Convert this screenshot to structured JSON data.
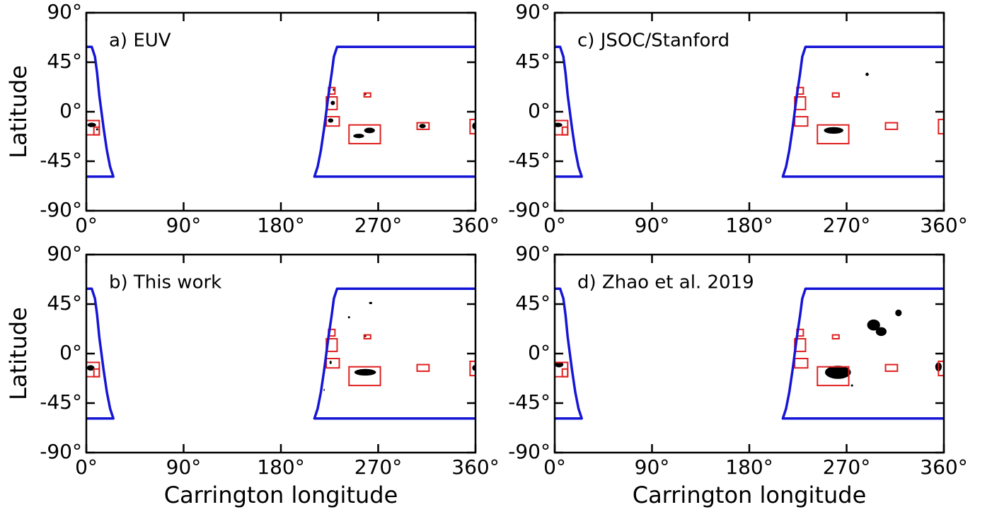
{
  "chart_data": [
    {
      "type": "map",
      "label": "a) EUV",
      "ylabel": "Latitude",
      "xlim": [
        0,
        360
      ],
      "ylim": [
        -90,
        90
      ],
      "xticks": [
        {
          "value": 0,
          "label": "0°"
        },
        {
          "value": 90,
          "label": "90°"
        },
        {
          "value": 180,
          "label": "180°"
        },
        {
          "value": 270,
          "label": "270°"
        },
        {
          "value": 360,
          "label": "360°"
        }
      ],
      "yticks": [
        {
          "value": -90,
          "label": "-90°"
        },
        {
          "value": -45,
          "label": "-45°"
        },
        {
          "value": 0,
          "label": "0°"
        },
        {
          "value": 45,
          "label": "45°"
        },
        {
          "value": 90,
          "label": "90°"
        }
      ],
      "boundary": {
        "color": "#1515d6",
        "lon": [
          0,
          5,
          8,
          10,
          12,
          14,
          16,
          19,
          22,
          25,
          0,
          null,
          360,
          232,
          229,
          227,
          224,
          222,
          220,
          217,
          214,
          211,
          360
        ],
        "lat": [
          59,
          59,
          50,
          35,
          15,
          0,
          -15,
          -35,
          -50,
          -59,
          -59,
          null,
          59,
          59,
          50,
          35,
          15,
          0,
          -15,
          -35,
          -50,
          -59,
          -59
        ]
      },
      "boxes": {
        "color": "#e02020",
        "lon0": [
          0,
          7,
          222,
          224,
          222,
          243,
          257,
          306,
          355
        ],
        "lon1": [
          12,
          12,
          232,
          230,
          234,
          272,
          263,
          317,
          360
        ],
        "lat0": [
          -21,
          -21,
          2,
          16,
          -13,
          -29,
          13.5,
          -16,
          -20
        ],
        "lat1": [
          -8,
          -14,
          13.5,
          22,
          -4.5,
          -12,
          17,
          -10,
          -7
        ]
      },
      "regions": {
        "color": "#000000",
        "lon": [
          5,
          10,
          229,
          228,
          226,
          252,
          262,
          258,
          311,
          359
        ],
        "lat": [
          -12,
          -16,
          20,
          8,
          -8,
          -22,
          -17,
          16,
          -13,
          -13
        ],
        "dlon": [
          8,
          2,
          2,
          4,
          5,
          10,
          10,
          2,
          6,
          4
        ],
        "dlat": [
          4,
          2,
          2,
          4,
          4,
          4,
          5,
          2,
          4,
          6
        ]
      }
    },
    {
      "type": "map",
      "label": "c) JSOC/Stanford",
      "xlim": [
        0,
        360
      ],
      "ylim": [
        -90,
        90
      ],
      "xticks": [
        {
          "value": 0,
          "label": "0°"
        },
        {
          "value": 90,
          "label": "90°"
        },
        {
          "value": 180,
          "label": "180°"
        },
        {
          "value": 270,
          "label": "270°"
        },
        {
          "value": 360,
          "label": "360°"
        }
      ],
      "yticks": [
        {
          "value": -90,
          "label": "-90°"
        },
        {
          "value": -45,
          "label": "-45°"
        },
        {
          "value": 0,
          "label": "0°"
        },
        {
          "value": 45,
          "label": "45°"
        },
        {
          "value": 90,
          "label": "90°"
        }
      ],
      "boundary": {
        "color": "#1515d6",
        "lon": [
          0,
          5,
          8,
          10,
          12,
          14,
          16,
          19,
          22,
          25,
          0,
          null,
          360,
          232,
          229,
          227,
          224,
          222,
          220,
          217,
          214,
          211,
          360
        ],
        "lat": [
          59,
          59,
          50,
          35,
          15,
          0,
          -15,
          -35,
          -50,
          -59,
          -59,
          null,
          59,
          59,
          50,
          35,
          15,
          0,
          -15,
          -35,
          -50,
          -59,
          -59
        ]
      },
      "boxes": {
        "color": "#e02020",
        "lon0": [
          0,
          7,
          222,
          224,
          222,
          243,
          257,
          306,
          355
        ],
        "lon1": [
          12,
          12,
          232,
          230,
          234,
          272,
          263,
          317,
          360
        ],
        "lat0": [
          -21,
          -21,
          2,
          16,
          -13,
          -29,
          13.5,
          -16,
          -20
        ],
        "lat1": [
          -8,
          -14,
          13.5,
          22,
          -4.5,
          -12,
          17,
          -10,
          -7
        ]
      },
      "regions": {
        "color": "#000000",
        "lon": [
          3,
          289,
          258
        ],
        "lat": [
          -12,
          34,
          -17
        ],
        "dlon": [
          8,
          3,
          18
        ],
        "dlat": [
          4,
          3,
          6
        ]
      }
    },
    {
      "type": "map",
      "label": "b) This work",
      "ylabel": "Latitude",
      "xlabel": "Carrington longitude",
      "xlim": [
        0,
        360
      ],
      "ylim": [
        -90,
        90
      ],
      "xticks": [
        {
          "value": 0,
          "label": "0°"
        },
        {
          "value": 90,
          "label": "90°"
        },
        {
          "value": 180,
          "label": "180°"
        },
        {
          "value": 270,
          "label": "270°"
        },
        {
          "value": 360,
          "label": "360°"
        }
      ],
      "yticks": [
        {
          "value": -90,
          "label": "-90°"
        },
        {
          "value": -45,
          "label": "-45°"
        },
        {
          "value": 0,
          "label": "0°"
        },
        {
          "value": 45,
          "label": "45°"
        },
        {
          "value": 90,
          "label": "90°"
        }
      ],
      "boundary": {
        "color": "#1515d6",
        "lon": [
          0,
          5,
          8,
          10,
          12,
          14,
          16,
          19,
          22,
          25,
          0,
          null,
          360,
          232,
          229,
          227,
          224,
          222,
          220,
          217,
          214,
          211,
          360
        ],
        "lat": [
          59,
          59,
          50,
          35,
          15,
          0,
          -15,
          -35,
          -50,
          -59,
          -59,
          null,
          59,
          59,
          50,
          35,
          15,
          0,
          -15,
          -35,
          -50,
          -59,
          -59
        ]
      },
      "boxes": {
        "color": "#e02020",
        "lon0": [
          0,
          7,
          222,
          224,
          222,
          243,
          257,
          306,
          355
        ],
        "lon1": [
          12,
          12,
          232,
          230,
          234,
          272,
          263,
          317,
          360
        ],
        "lat0": [
          -21,
          -21,
          2,
          16,
          -13,
          -29,
          13.5,
          -16,
          -20
        ],
        "lat1": [
          -8,
          -14,
          13.5,
          22,
          -4.5,
          -12,
          17,
          -10,
          -7
        ]
      },
      "regions": {
        "color": "#000000",
        "lon": [
          4,
          226,
          243,
          263,
          220,
          258,
          359,
          258
        ],
        "lat": [
          -13,
          -8,
          33,
          46,
          -33,
          -17,
          -13,
          16
        ],
        "dlon": [
          7,
          2,
          2,
          3,
          1,
          20,
          4,
          2
        ],
        "dlat": [
          5,
          3,
          2,
          2,
          2,
          6,
          5,
          2
        ]
      }
    },
    {
      "type": "map",
      "label": "d) Zhao et al. 2019",
      "xlabel": "Carrington longitude",
      "xlim": [
        0,
        360
      ],
      "ylim": [
        -90,
        90
      ],
      "xticks": [
        {
          "value": 0,
          "label": "0°"
        },
        {
          "value": 90,
          "label": "90°"
        },
        {
          "value": 180,
          "label": "180°"
        },
        {
          "value": 270,
          "label": "270°"
        },
        {
          "value": 360,
          "label": "360°"
        }
      ],
      "yticks": [
        {
          "value": -90,
          "label": "-90°"
        },
        {
          "value": -45,
          "label": "-45°"
        },
        {
          "value": 0,
          "label": "0°"
        },
        {
          "value": 45,
          "label": "45°"
        },
        {
          "value": 90,
          "label": "90°"
        }
      ],
      "boundary": {
        "color": "#1515d6",
        "lon": [
          0,
          5,
          8,
          10,
          12,
          14,
          16,
          19,
          22,
          25,
          0,
          null,
          360,
          232,
          229,
          227,
          224,
          222,
          220,
          217,
          214,
          211,
          360
        ],
        "lat": [
          59,
          59,
          50,
          35,
          15,
          0,
          -15,
          -35,
          -50,
          -59,
          -59,
          null,
          59,
          59,
          50,
          35,
          15,
          0,
          -15,
          -35,
          -50,
          -59,
          -59
        ]
      },
      "boxes": {
        "color": "#e02020",
        "lon0": [
          0,
          7,
          222,
          224,
          222,
          243,
          257,
          306,
          355
        ],
        "lon1": [
          12,
          12,
          232,
          230,
          234,
          272,
          263,
          317,
          360
        ],
        "lat0": [
          -21,
          -21,
          2,
          16,
          -13,
          -29,
          13.5,
          -16,
          -20
        ],
        "lat1": [
          -8,
          -14,
          13.5,
          22,
          -4.5,
          -12,
          17,
          -10,
          -7
        ]
      },
      "regions": {
        "color": "#000000",
        "lon": [
          4,
          262,
          295,
          302,
          318,
          355,
          275
        ],
        "lat": [
          -10,
          -17,
          26,
          20,
          37,
          -12,
          -29
        ],
        "dlon": [
          8,
          24,
          12,
          10,
          6,
          6,
          2
        ],
        "dlat": [
          5,
          12,
          10,
          8,
          6,
          8,
          2
        ]
      }
    }
  ]
}
